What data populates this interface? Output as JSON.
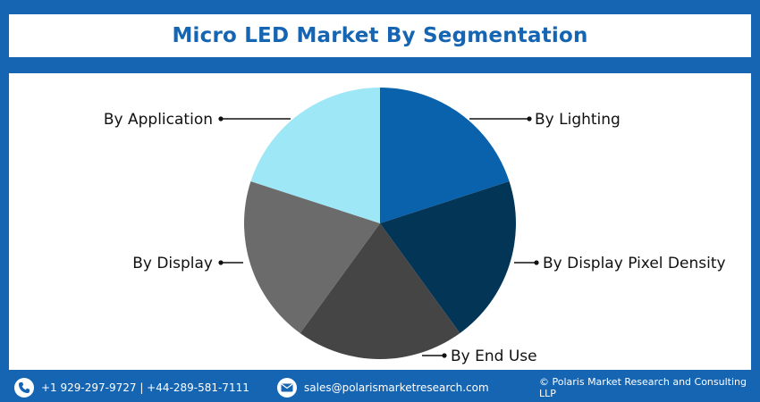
{
  "title": "Micro LED Market By Segmentation",
  "chart_data": {
    "type": "pie",
    "title": "Micro LED Market By Segmentation",
    "slices": [
      {
        "label": "By Lighting",
        "value": 20,
        "color": "#0a62ac"
      },
      {
        "label": "By Display Pixel Density",
        "value": 20,
        "color": "#033557"
      },
      {
        "label": "By End Use",
        "value": 20,
        "color": "#454545"
      },
      {
        "label": "By Display",
        "value": 20,
        "color": "#6b6b6b"
      },
      {
        "label": "By Application",
        "value": 20,
        "color": "#9ee7f7"
      }
    ]
  },
  "footer": {
    "phone": "+1 929-297-9727 | +44-289-581-7111",
    "email": "sales@polarismarketresearch.com",
    "copyright": "© Polaris Market Research and Consulting LLP",
    "phone_icon": "phone-icon",
    "email_icon": "email-icon"
  }
}
